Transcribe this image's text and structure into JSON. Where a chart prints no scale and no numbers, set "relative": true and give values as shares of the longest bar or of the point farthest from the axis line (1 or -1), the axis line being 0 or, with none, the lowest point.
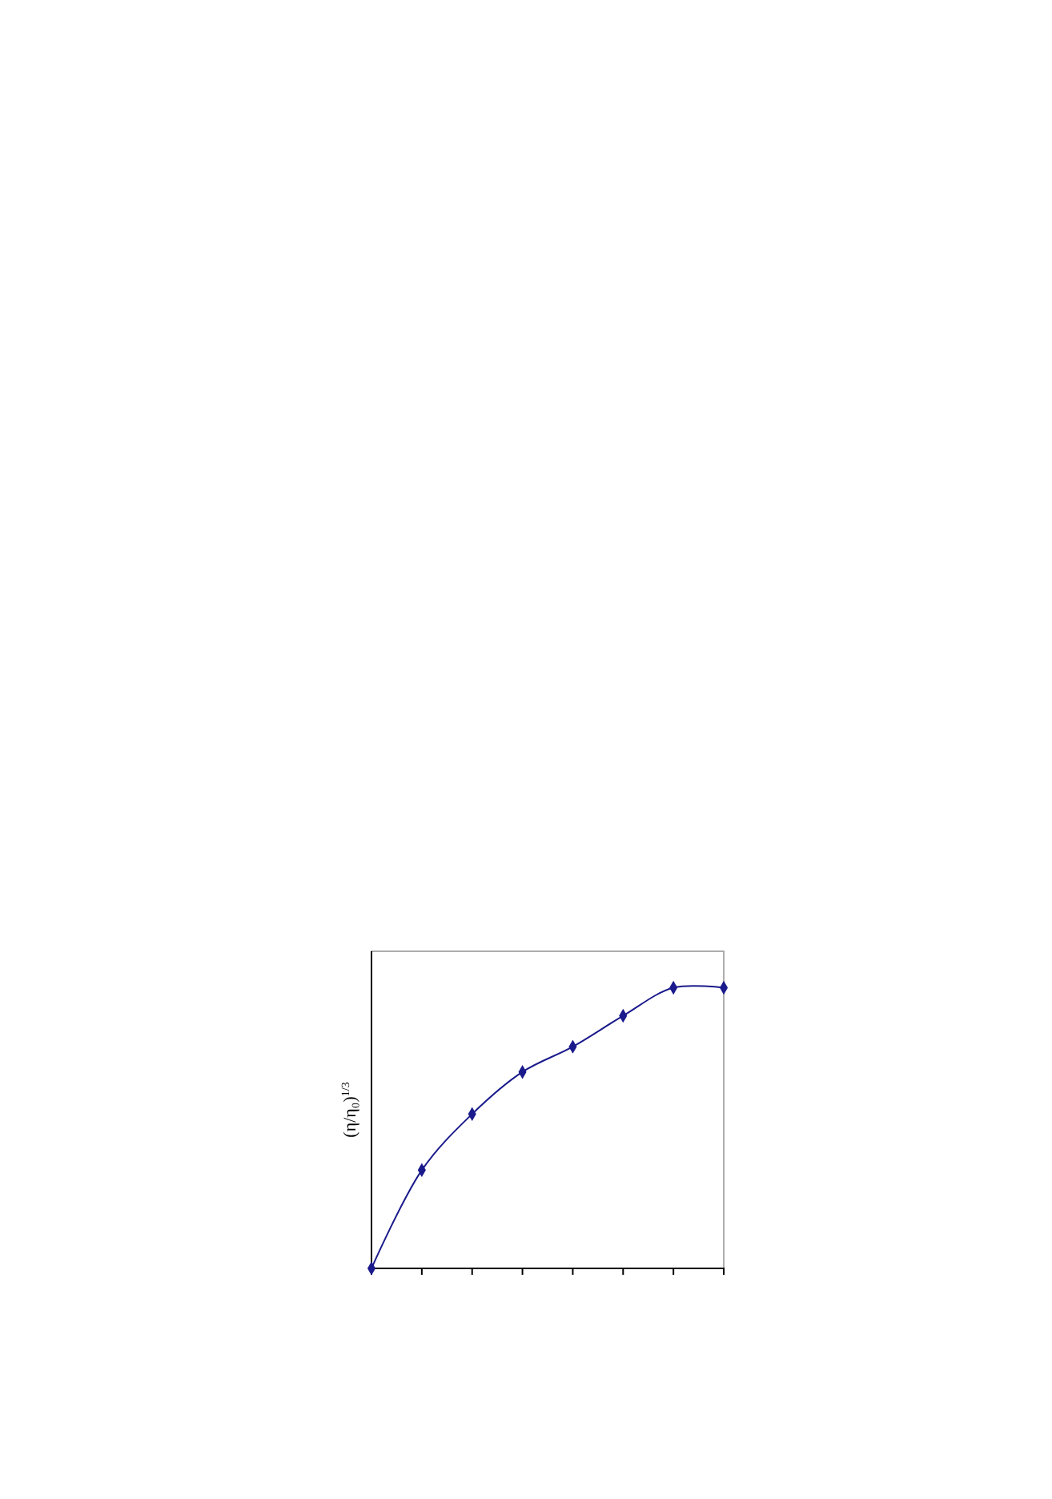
{
  "chart_data": {
    "type": "line",
    "ylabel": "(η/η₀)$^{1/3}$",
    "categories": [
      null,
      null,
      null,
      null,
      null,
      null,
      null,
      null
    ],
    "relative": true,
    "marker": "diamond",
    "line_style": "solid",
    "series": [
      {
        "color": "#1a1a8c",
        "values": [
          0,
          0.35,
          0.55,
          0.7,
          0.79,
          0.9,
          1,
          1
        ]
      }
    ]
  }
}
